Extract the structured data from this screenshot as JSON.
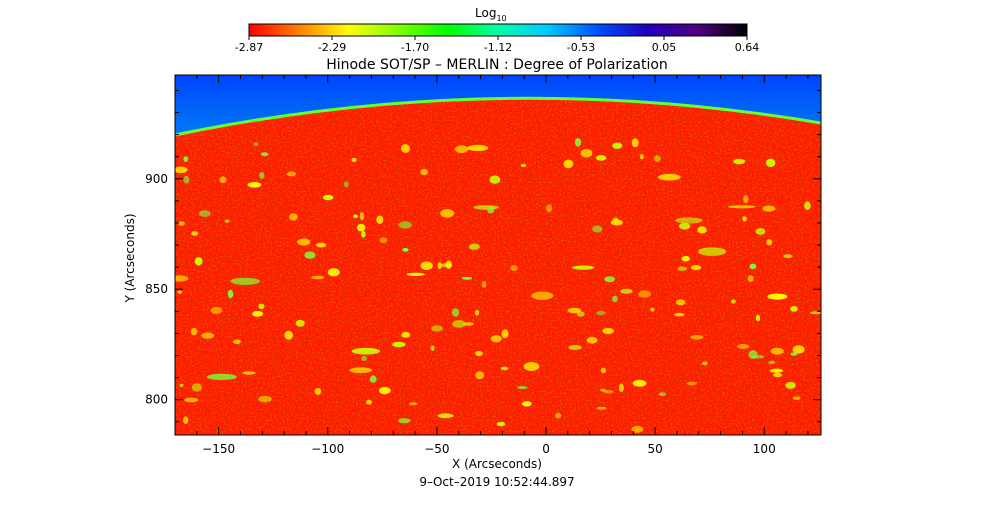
{
  "colorbar": {
    "label_main": "Log",
    "label_sub": "10",
    "ticks": [
      "-2.87",
      "-2.29",
      "-1.70",
      "-1.12",
      "-0.53",
      "0.05",
      "0.64"
    ],
    "range": [
      -2.87,
      0.64
    ],
    "colormap": [
      "#ff0000",
      "#ff8000",
      "#ffff00",
      "#80ff00",
      "#00ff00",
      "#00ffaa",
      "#00c8ff",
      "#0050ff",
      "#2000c0",
      "#500080",
      "#000000"
    ]
  },
  "title": "Hinode SOT/SP – MERLIN : Degree of Polarization",
  "x_axis": {
    "label": "X (Arcseconds)",
    "range": [
      -170,
      126
    ],
    "ticks": [
      {
        "value": -150,
        "label": "−150"
      },
      {
        "value": -100,
        "label": "−100"
      },
      {
        "value": -50,
        "label": "−50"
      },
      {
        "value": 0,
        "label": "0"
      },
      {
        "value": 50,
        "label": "50"
      },
      {
        "value": 100,
        "label": "100"
      }
    ]
  },
  "y_axis": {
    "label": "Y (Arcseconds)",
    "range": [
      784,
      947
    ],
    "ticks": [
      {
        "value": 800,
        "label": "800"
      },
      {
        "value": 850,
        "label": "850"
      },
      {
        "value": 900,
        "label": "900"
      }
    ]
  },
  "timestamp": "9–Oct–2019 10:52:44.897",
  "colors": {
    "disk": "#ff1a00",
    "limb": "#66ff33",
    "off_limb": "#00ff88",
    "sky_top": "#0044ff"
  }
}
